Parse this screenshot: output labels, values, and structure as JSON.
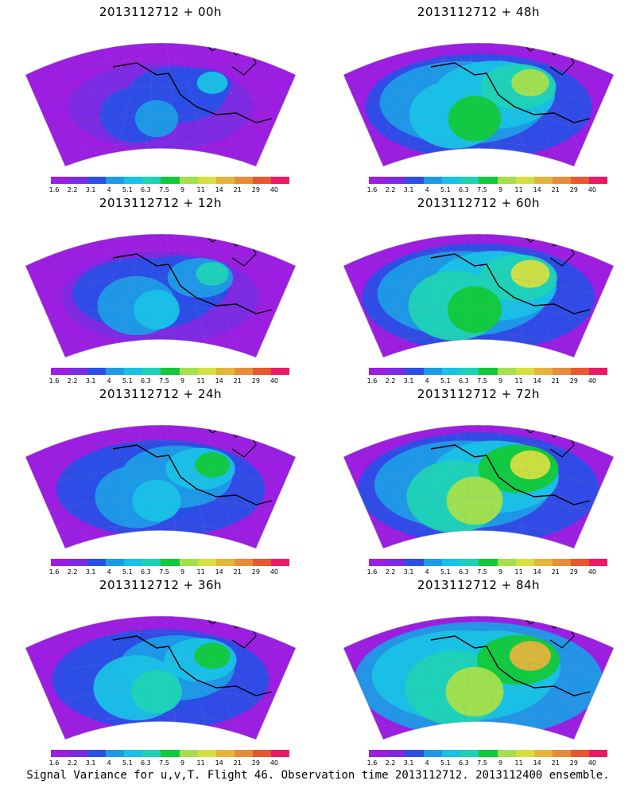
{
  "colors": {
    "scale": [
      "#9b1ee1",
      "#7b2be3",
      "#2b4fe6",
      "#1e9be6",
      "#19c1e6",
      "#1fd2b6",
      "#12c939",
      "#a5e04c",
      "#d6df40",
      "#e4b43b",
      "#e88c3c",
      "#e95731",
      "#eb1a64"
    ]
  },
  "colorbar_labels": [
    "1.6",
    "2.2",
    "3.1",
    "4",
    "5.1",
    "6.3",
    "7.5",
    "9",
    "11",
    "14",
    "21",
    "29",
    "40"
  ],
  "panels": [
    {
      "title": "2013112712 + 00h",
      "intensity": 0.35
    },
    {
      "title": "2013112712 + 48h",
      "intensity": 0.7
    },
    {
      "title": "2013112712 + 12h",
      "intensity": 0.45
    },
    {
      "title": "2013112712 + 60h",
      "intensity": 0.75
    },
    {
      "title": "2013112712 + 24h",
      "intensity": 0.55
    },
    {
      "title": "2013112712 + 72h",
      "intensity": 0.82
    },
    {
      "title": "2013112712 + 36h",
      "intensity": 0.62
    },
    {
      "title": "2013112712 + 84h",
      "intensity": 0.88
    }
  ],
  "caption": "Signal Variance for u,v,T. Flight 46. Observation time 2013112712. 2013112400 ensemble.",
  "chart_data": {
    "type": "heatmap",
    "panels": [
      "2013112712 + 00h",
      "2013112712 + 48h",
      "2013112712 + 12h",
      "2013112712 + 60h",
      "2013112712 + 24h",
      "2013112712 + 72h",
      "2013112712 + 36h",
      "2013112712 + 84h"
    ],
    "colorbar_ticks": [
      1.6,
      2.2,
      3.1,
      4,
      5.1,
      6.3,
      7.5,
      9,
      11,
      14,
      21,
      29,
      40
    ],
    "caption": "Signal Variance for u,v,T. Flight 46. Observation time 2013112712. 2013112400 ensemble."
  }
}
